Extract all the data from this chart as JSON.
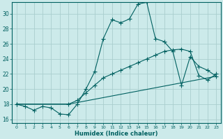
{
  "xlabel": "Humidex (Indice chaleur)",
  "bg_color": "#cceaea",
  "grid_color": "#aacece",
  "line_color": "#006060",
  "xlim": [
    -0.5,
    23.5
  ],
  "ylim": [
    15.5,
    31.5
  ],
  "xticks": [
    0,
    1,
    2,
    3,
    4,
    5,
    6,
    7,
    8,
    9,
    10,
    11,
    12,
    13,
    14,
    15,
    16,
    17,
    18,
    19,
    20,
    21,
    22,
    23
  ],
  "yticks": [
    16,
    18,
    20,
    22,
    24,
    26,
    28,
    30
  ],
  "line1_x": [
    0,
    1,
    2,
    3,
    4,
    5,
    6,
    7,
    8,
    9,
    10,
    11,
    12,
    13,
    14,
    15,
    16,
    17,
    18,
    19,
    20,
    21,
    22,
    23
  ],
  "line1_y": [
    18,
    17.7,
    17.2,
    17.7,
    17.5,
    16.7,
    16.6,
    18.0,
    20.0,
    22.3,
    26.7,
    29.2,
    28.8,
    29.3,
    31.3,
    31.5,
    26.7,
    26.3,
    25.0,
    20.5,
    24.3,
    23.0,
    22.5,
    21.7
  ],
  "line2_x": [
    0,
    6,
    7,
    8,
    9,
    10,
    11,
    12,
    13,
    14,
    15,
    16,
    17,
    18,
    19,
    20,
    21,
    22,
    23
  ],
  "line2_y": [
    18,
    18.0,
    18.5,
    19.5,
    20.5,
    21.5,
    22.0,
    22.5,
    23.0,
    23.5,
    24.0,
    24.5,
    25.0,
    25.2,
    25.3,
    25.0,
    21.8,
    21.2,
    22.0
  ],
  "line3_x": [
    0,
    6,
    23
  ],
  "line3_y": [
    18,
    18.0,
    21.7
  ]
}
